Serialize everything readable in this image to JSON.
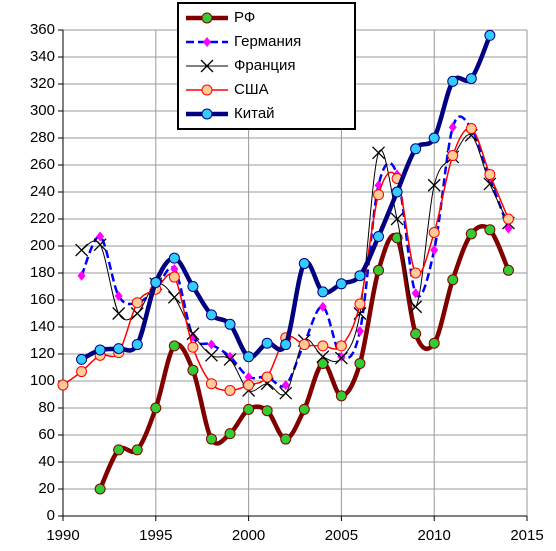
{
  "chart_data": {
    "type": "line",
    "x": [
      1990,
      1991,
      1992,
      1993,
      1994,
      1995,
      1996,
      1997,
      1998,
      1999,
      2000,
      2001,
      2002,
      2003,
      2004,
      2005,
      2006,
      2007,
      2008,
      2009,
      2010,
      2011,
      2012,
      2013,
      2014
    ],
    "series": [
      {
        "name": "РФ",
        "color": "#800000",
        "marker": "circle",
        "marker_color": "#33cc33",
        "values": [
          null,
          null,
          20,
          49,
          49,
          80,
          126,
          108,
          57,
          61,
          79,
          78,
          57,
          79,
          113,
          89,
          113,
          182,
          206,
          135,
          128,
          175,
          209,
          212,
          182
        ]
      },
      {
        "name": "Германия",
        "color": "#0000ff",
        "marker": "diamond",
        "marker_color": "#ff00ff",
        "dashed": true,
        "values": [
          null,
          178,
          207,
          163,
          158,
          168,
          183,
          133,
          127,
          118,
          103,
          103,
          97,
          128,
          155,
          118,
          137,
          245,
          253,
          165,
          197,
          288,
          287,
          250,
          213
        ]
      },
      {
        "name": "Франция",
        "color": "#000000",
        "marker": "x",
        "marker_color": "#000000",
        "values": [
          null,
          197,
          201,
          150,
          150,
          172,
          162,
          135,
          119,
          116,
          93,
          98,
          91,
          130,
          118,
          117,
          150,
          269,
          220,
          155,
          245,
          266,
          282,
          246,
          217
        ]
      },
      {
        "name": "США",
        "color": "#ff0000",
        "marker": "circle",
        "marker_color": "#ffcc99",
        "values": [
          97,
          107,
          119,
          121,
          158,
          168,
          177,
          125,
          98,
          93,
          97,
          103,
          132,
          127,
          126,
          126,
          157,
          238,
          250,
          180,
          210,
          267,
          287,
          253,
          220
        ]
      },
      {
        "name": "Китай",
        "color": "#000080",
        "marker": "circle",
        "marker_color": "#33ccff",
        "values": [
          null,
          116,
          123,
          124,
          127,
          173,
          191,
          170,
          149,
          142,
          118,
          128,
          127,
          187,
          166,
          172,
          178,
          207,
          240,
          272,
          280,
          322,
          324,
          356,
          null
        ]
      }
    ],
    "xlim": [
      1990,
      2015
    ],
    "xticks": [
      1990,
      1995,
      2000,
      2005,
      2010,
      2015
    ],
    "ylim": [
      0,
      360
    ],
    "yticks": [
      0,
      20,
      40,
      60,
      80,
      100,
      120,
      140,
      160,
      180,
      200,
      220,
      240,
      260,
      280,
      300,
      320,
      340,
      360
    ],
    "grid": true,
    "legend": "top"
  }
}
